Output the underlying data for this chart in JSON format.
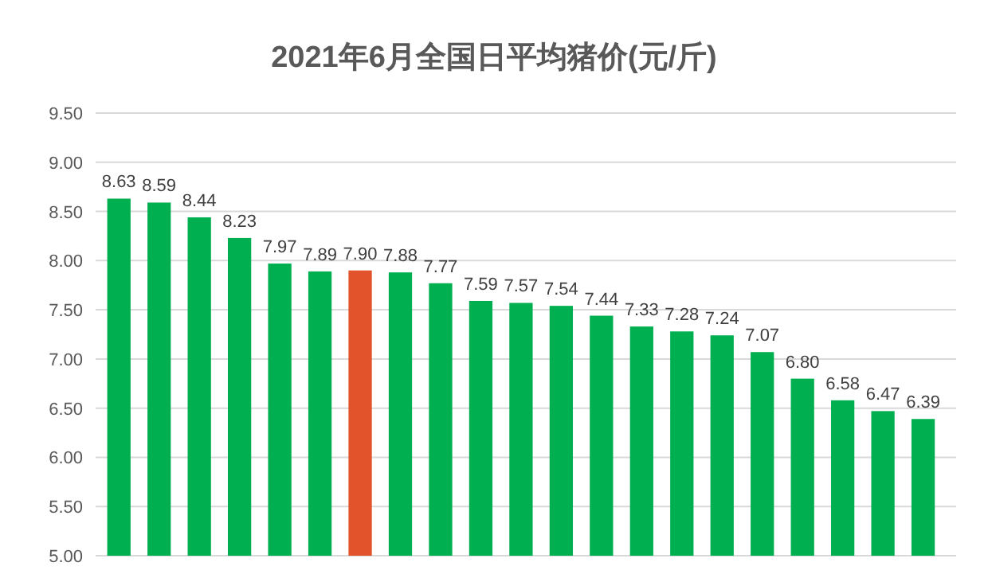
{
  "chart_data": {
    "type": "bar",
    "title": "2021年6月全国日平均猪价(元/斤)",
    "categories": [
      null,
      null,
      null,
      null,
      null,
      null,
      null,
      null,
      null,
      null,
      null,
      null,
      null,
      null,
      null,
      null,
      null,
      null,
      null,
      null,
      null
    ],
    "values": [
      8.63,
      8.59,
      8.44,
      8.23,
      7.97,
      7.89,
      7.9,
      7.88,
      7.77,
      7.59,
      7.57,
      7.54,
      7.44,
      7.33,
      7.28,
      7.24,
      7.07,
      6.8,
      6.58,
      6.47,
      6.39
    ],
    "value_labels": [
      "8.63",
      "8.59",
      "8.44",
      "8.23",
      "7.97",
      "7.89",
      "7.90",
      "7.88",
      "7.77",
      "7.59",
      "7.57",
      "7.54",
      "7.44",
      "7.33",
      "7.28",
      "7.24",
      "7.07",
      "6.80",
      "6.58",
      "6.47",
      "6.39"
    ],
    "colors": [
      "#00b050",
      "#00b050",
      "#00b050",
      "#00b050",
      "#00b050",
      "#00b050",
      "#e2532b",
      "#00b050",
      "#00b050",
      "#00b050",
      "#00b050",
      "#00b050",
      "#00b050",
      "#00b050",
      "#00b050",
      "#00b050",
      "#00b050",
      "#00b050",
      "#00b050",
      "#00b050",
      "#00b050"
    ],
    "ylim": [
      5,
      9.5
    ],
    "yticks": [
      {
        "value": 5,
        "label": "5.00"
      },
      {
        "value": 5.5,
        "label": "5.50"
      },
      {
        "value": 6,
        "label": "6.00"
      },
      {
        "value": 6.5,
        "label": "6.50"
      },
      {
        "value": 7,
        "label": "7.00"
      },
      {
        "value": 7.5,
        "label": "7.50"
      },
      {
        "value": 8,
        "label": "8.00"
      },
      {
        "value": 8.5,
        "label": "8.50"
      },
      {
        "value": 9,
        "label": "9.00"
      },
      {
        "value": 9.5,
        "label": "9.50"
      }
    ],
    "grid": "y"
  }
}
